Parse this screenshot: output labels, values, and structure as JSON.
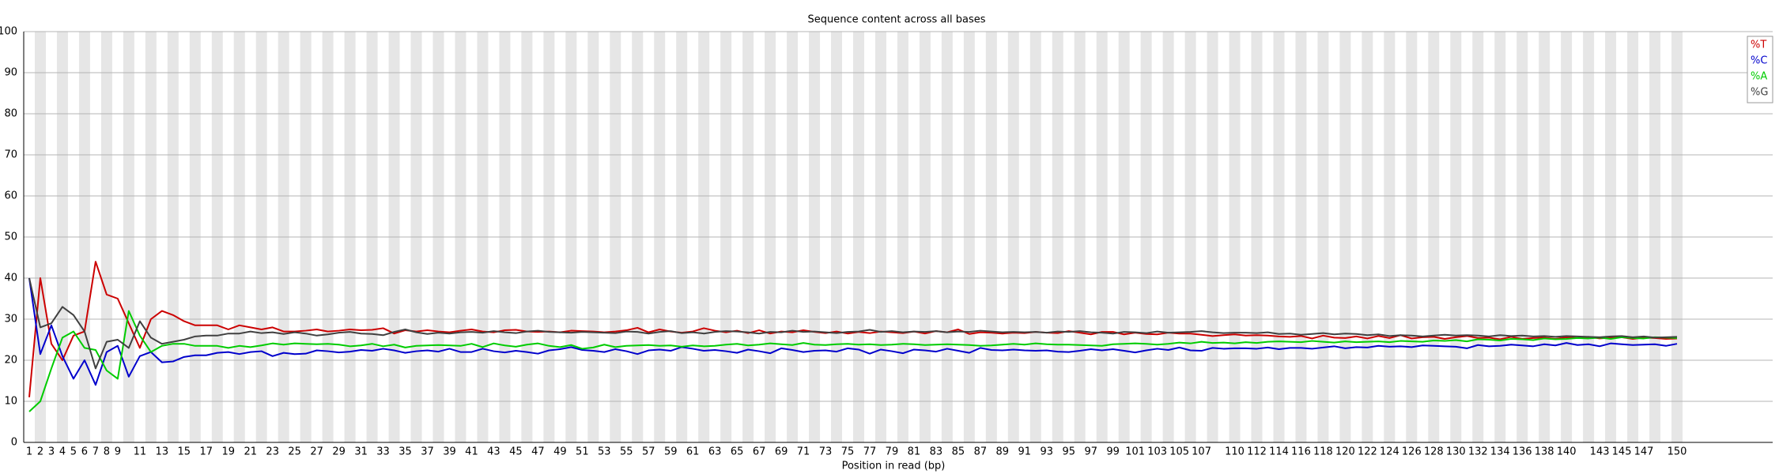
{
  "chart_data": {
    "type": "line",
    "title": "Sequence content across all bases",
    "xlabel": "Position in read (bp)",
    "categories": [
      "1",
      "2",
      "3",
      "4",
      "5",
      "6",
      "7",
      "8",
      "9",
      null,
      "11",
      null,
      "13",
      null,
      "15",
      null,
      "17",
      null,
      "19",
      null,
      "21",
      null,
      "23",
      null,
      "25",
      null,
      "27",
      null,
      "29",
      null,
      "31",
      null,
      "33",
      null,
      "35",
      null,
      "37",
      null,
      "39",
      null,
      "41",
      null,
      "43",
      null,
      "45",
      null,
      "47",
      null,
      "49",
      null,
      "51",
      null,
      "53",
      null,
      "55",
      null,
      "57",
      null,
      "59",
      null,
      "61",
      null,
      "63",
      null,
      "65",
      null,
      "67",
      null,
      "69",
      null,
      "71",
      null,
      "73",
      null,
      "75",
      null,
      "77",
      null,
      "79",
      null,
      "81",
      null,
      "83",
      null,
      "85",
      null,
      "87",
      null,
      "89",
      null,
      "91",
      null,
      "93",
      null,
      "95",
      null,
      "97",
      null,
      "99",
      null,
      "101",
      null,
      "103",
      null,
      "105",
      null,
      "107",
      null,
      null,
      "110",
      null,
      "112",
      null,
      "114",
      null,
      "116",
      null,
      "118",
      null,
      "120",
      null,
      "122",
      null,
      "124",
      null,
      "126",
      null,
      "128",
      null,
      "130",
      null,
      "132",
      null,
      "134",
      null,
      "136",
      null,
      "138",
      null,
      "140",
      null,
      null,
      "143",
      null,
      "145",
      null,
      "147",
      null,
      null,
      "150"
    ],
    "series": [
      {
        "name": "%T",
        "color": "#cc0000",
        "values": [
          11,
          40,
          24,
          20,
          26,
          27,
          44,
          36,
          35,
          29,
          23,
          30,
          32,
          31,
          29.5,
          28.5,
          28.5,
          28.5,
          27.5,
          28.5,
          28,
          27.5,
          28,
          27,
          27,
          27.2,
          27.5,
          27,
          27.2,
          27.5,
          27.3,
          27.4,
          27.8,
          26.5,
          27.3,
          27,
          27.3,
          27,
          26.8,
          27.2,
          27.5,
          27,
          26.8,
          27.3,
          27.4,
          27,
          26.9,
          27,
          26.8,
          27.2,
          27.1,
          27,
          26.8,
          27,
          27.3,
          27.9,
          26.8,
          27.5,
          27,
          26.7,
          27,
          27.8,
          27.2,
          26.8,
          27.2,
          26.6,
          27.3,
          26.5,
          27,
          26.8,
          27.3,
          26.9,
          26.6,
          27,
          26.5,
          26.9,
          26.6,
          27,
          26.8,
          26.6,
          27,
          26.5,
          27.1,
          26.8,
          27.5,
          26.4,
          26.8,
          26.7,
          26.5,
          26.7,
          26.6,
          26.9,
          26.7,
          26.6,
          27.1,
          26.7,
          26.3,
          26.9,
          26.9,
          26.3,
          26.7,
          26.4,
          26.3,
          26.7,
          26.5,
          26.5,
          26.2,
          25.9,
          26.1,
          26.3,
          26.0,
          26.1,
          26.0,
          25.8,
          25.7,
          25.9,
          25.3,
          26.0,
          25.5,
          25.4,
          25.8,
          25.3,
          25.9,
          25.4,
          26.1,
          25.3,
          25.6,
          25.7,
          25.2,
          25.6,
          25.9,
          25.4,
          25.5,
          25.1,
          25.7,
          25.2,
          25.4,
          25.5,
          25.2,
          25.6,
          25.4,
          25.7,
          25.3,
          25.5,
          25.6,
          25.2,
          25.5,
          25.4,
          25.2,
          25.3
        ]
      },
      {
        "name": "%C",
        "color": "#0000cc",
        "values": [
          40,
          21.5,
          28.5,
          21,
          15.5,
          20,
          14,
          22,
          23.5,
          16,
          21,
          22,
          19.5,
          19.7,
          20.8,
          21.2,
          21.2,
          21.8,
          22,
          21.5,
          22,
          22.2,
          21,
          21.8,
          21.5,
          21.6,
          22.4,
          22.2,
          21.9,
          22.1,
          22.5,
          22.3,
          22.8,
          22.4,
          21.8,
          22.2,
          22.4,
          22.1,
          22.8,
          22,
          22,
          22.8,
          22.2,
          21.9,
          22.3,
          22,
          21.6,
          22.4,
          22.7,
          23.2,
          22.5,
          22.3,
          22,
          22.7,
          22.2,
          21.5,
          22.4,
          22.6,
          22.3,
          23.2,
          22.8,
          22.3,
          22.5,
          22.2,
          21.8,
          22.6,
          22.2,
          21.7,
          22.9,
          22.5,
          22,
          22.3,
          22.4,
          22.1,
          22.9,
          22.6,
          21.6,
          22.6,
          22.2,
          21.7,
          22.6,
          22.4,
          22.1,
          22.8,
          22.3,
          21.8,
          23,
          22.5,
          22.4,
          22.6,
          22.4,
          22.3,
          22.4,
          22.1,
          22,
          22.3,
          22.7,
          22.4,
          22.7,
          22.3,
          21.9,
          22.4,
          22.8,
          22.5,
          23.1,
          22.4,
          22.3,
          23,
          22.8,
          22.9,
          22.9,
          22.8,
          23.1,
          22.7,
          23,
          23,
          22.8,
          23.1,
          23.4,
          22.9,
          23.2,
          23.1,
          23.5,
          23.3,
          23.4,
          23.2,
          23.6,
          23.5,
          23.4,
          23.3,
          22.9,
          23.7,
          23.4,
          23.5,
          23.8,
          23.6,
          23.4,
          23.9,
          23.6,
          24.2,
          23.7,
          23.9,
          23.4,
          24.1,
          23.9,
          23.7,
          23.8,
          23.9,
          23.5,
          24.0
        ]
      },
      {
        "name": "%A",
        "color": "#00cc00",
        "values": [
          7.5,
          10,
          18,
          25.5,
          27,
          23,
          22.5,
          17.5,
          15.5,
          32,
          26,
          22,
          23.5,
          24,
          24,
          23.5,
          23.5,
          23.5,
          23,
          23.5,
          23.2,
          23.6,
          24.1,
          23.8,
          24.1,
          24,
          23.9,
          24,
          23.8,
          23.4,
          23.6,
          24,
          23.4,
          23.8,
          23.1,
          23.5,
          23.6,
          23.7,
          23.6,
          23.5,
          24,
          23.2,
          24.1,
          23.6,
          23.3,
          23.8,
          24.1,
          23.5,
          23.2,
          23.7,
          22.8,
          23.1,
          23.8,
          23.2,
          23.5,
          23.6,
          23.7,
          23.5,
          23.6,
          23.3,
          23.6,
          23.4,
          23.5,
          23.8,
          24,
          23.6,
          23.8,
          24.1,
          23.9,
          23.7,
          24.2,
          23.8,
          23.7,
          23.9,
          24,
          23.8,
          23.9,
          23.7,
          23.8,
          24,
          23.9,
          23.7,
          23.8,
          23.9,
          23.8,
          23.7,
          23.5,
          23.6,
          23.8,
          24,
          23.8,
          24.1,
          23.9,
          23.8,
          23.8,
          23.7,
          23.6,
          23.5,
          23.9,
          24,
          24.1,
          24,
          23.8,
          24,
          24.3,
          24.1,
          24.5,
          24.2,
          24.3,
          24.1,
          24.4,
          24.2,
          24.5,
          24.6,
          24.5,
          24.4,
          24.7,
          24.5,
          24.3,
          24.6,
          24.4,
          24.5,
          24.6,
          24.4,
          24.7,
          24.6,
          24.5,
          24.8,
          24.7,
          24.9,
          24.6,
          25.1,
          25,
          24.8,
          25.2,
          25.1,
          24.9,
          25.3,
          25.1,
          25.2,
          25.4,
          25.3,
          25.5,
          25.2,
          25.6,
          25.4,
          25.3,
          25.6,
          25.5,
          25.4
        ]
      },
      {
        "name": "%G",
        "color": "#404040",
        "values": [
          40,
          28,
          29,
          33,
          31,
          27,
          18,
          24.5,
          25,
          23,
          29.5,
          25.5,
          24,
          24.5,
          25,
          25.8,
          26,
          26,
          26.5,
          26.5,
          27,
          26.6,
          26.8,
          26.4,
          26.8,
          26.5,
          26,
          26.3,
          26.7,
          26.9,
          26.5,
          26.4,
          26.1,
          26.9,
          27.5,
          26.8,
          26.4,
          26.7,
          26.5,
          26.8,
          26.9,
          26.7,
          27.1,
          26.8,
          26.6,
          27,
          27.2,
          26.9,
          26.8,
          26.7,
          26.9,
          26.8,
          26.7,
          26.6,
          27,
          26.9,
          26.5,
          26.9,
          27.1,
          26.6,
          26.8,
          26.5,
          26.9,
          27.1,
          27,
          26.8,
          26.5,
          26.9,
          26.8,
          27.2,
          26.9,
          27,
          26.8,
          26.6,
          26.9,
          27,
          27.4,
          26.9,
          27.1,
          26.8,
          27,
          26.9,
          27.1,
          26.8,
          27,
          26.9,
          27.2,
          27,
          26.8,
          26.9,
          26.8,
          26.9,
          26.7,
          27,
          26.9,
          27.1,
          26.8,
          26.7,
          26.5,
          26.9,
          26.8,
          26.6,
          27,
          26.7,
          26.8,
          26.9,
          27.1,
          26.8,
          26.6,
          26.7,
          26.7,
          26.6,
          26.8,
          26.4,
          26.5,
          26.2,
          26.4,
          26.6,
          26.3,
          26.5,
          26.4,
          26.1,
          26.3,
          25.9,
          26.1,
          26,
          25.8,
          26,
          26.2,
          26,
          26.1,
          26,
          25.8,
          26.1,
          25.9,
          26,
          25.8,
          25.9,
          25.7,
          25.9,
          25.8,
          25.7,
          25.6,
          25.8,
          25.9,
          25.6,
          25.8,
          25.5,
          25.6,
          25.7
        ]
      }
    ],
    "ylim": [
      0,
      100
    ],
    "yticks": [
      0,
      10,
      20,
      30,
      40,
      50,
      60,
      70,
      80,
      90,
      100
    ],
    "grid": true,
    "legend": "top-right"
  }
}
